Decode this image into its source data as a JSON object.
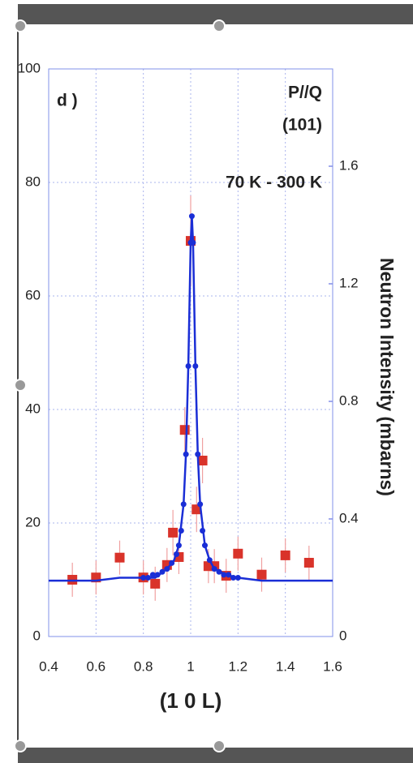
{
  "chart_data": {
    "type": "line",
    "annotations": [
      "d )",
      "P//Q",
      "(101)",
      "70 K - 300 K"
    ],
    "xlabel": "(1 0 L)",
    "y2label": "Neutron Intensity (mbarns)",
    "xlim": [
      0.4,
      1.6
    ],
    "xticks": [
      0.4,
      0.6,
      0.8,
      1,
      1.2,
      1.4,
      1.6
    ],
    "ylim": [
      0,
      100
    ],
    "yticks": [
      0,
      20,
      40,
      60,
      80,
      100
    ],
    "y2lim": [
      0,
      1.931
    ],
    "y2ticks": [
      0,
      0.4,
      0.8,
      1.2,
      1.6
    ],
    "grid": true,
    "series": [
      {
        "color": "#d9332a",
        "marker": "square",
        "x": [
          0.5,
          0.6,
          0.7,
          0.8,
          0.85,
          0.9,
          0.925,
          0.95,
          0.975,
          1.0,
          1.025,
          1.05,
          1.075,
          1.1,
          1.15,
          1.2,
          1.3,
          1.4,
          1.5
        ],
        "values": [
          10,
          10.4,
          13.9,
          10.4,
          9.3,
          12.6,
          18.3,
          14,
          36.4,
          69.7,
          22.4,
          31,
          12.4,
          12.4,
          10.7,
          14.6,
          10.9,
          14.3,
          13
        ],
        "errors": [
          3,
          3,
          3,
          3,
          3,
          3,
          4,
          3,
          4,
          8,
          4,
          4,
          3,
          3,
          3,
          3,
          3,
          3,
          3
        ]
      },
      {
        "color": "#1a2ed6",
        "marker": "circle",
        "axis": "y2",
        "x": [
          0.8,
          0.82,
          0.84,
          0.86,
          0.88,
          0.9,
          0.92,
          0.94,
          0.95,
          0.96,
          0.97,
          0.98,
          0.99,
          1.0,
          1.005,
          1.01,
          1.02,
          1.03,
          1.04,
          1.05,
          1.06,
          1.08,
          1.1,
          1.12,
          1.14,
          1.16,
          1.18,
          1.2
        ],
        "values": [
          0.2,
          0.2,
          0.21,
          0.21,
          0.22,
          0.23,
          0.25,
          0.28,
          0.31,
          0.36,
          0.45,
          0.62,
          0.92,
          1.34,
          1.43,
          1.34,
          0.92,
          0.62,
          0.45,
          0.36,
          0.31,
          0.26,
          0.23,
          0.22,
          0.21,
          0.21,
          0.2,
          0.2
        ]
      },
      {
        "color": "#1a2ed6",
        "marker": "none",
        "axis": "y2",
        "x": [
          0.4,
          0.6,
          0.7,
          0.8,
          0.85,
          0.9,
          0.93,
          0.95,
          0.97,
          0.98,
          0.99,
          1.0,
          1.005,
          1.01,
          1.02,
          1.03,
          1.04,
          1.06,
          1.08,
          1.1,
          1.15,
          1.2,
          1.3,
          1.4,
          1.6
        ],
        "values": [
          0.19,
          0.19,
          0.2,
          0.2,
          0.2,
          0.23,
          0.26,
          0.31,
          0.45,
          0.62,
          0.92,
          1.34,
          1.43,
          1.34,
          0.92,
          0.62,
          0.45,
          0.31,
          0.26,
          0.23,
          0.21,
          0.2,
          0.19,
          0.19,
          0.19
        ]
      }
    ]
  }
}
